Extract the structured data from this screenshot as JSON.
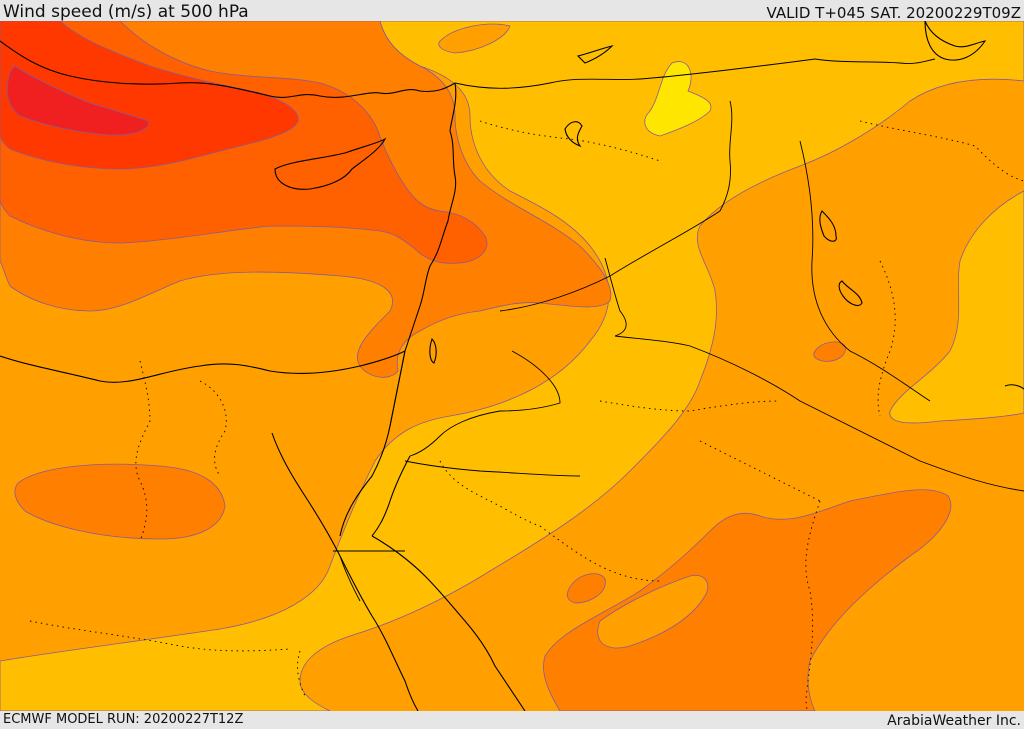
{
  "header": {
    "title": "Wind speed (m/s) at 500 hPa",
    "valid": "VALID T+045 SAT. 20200229T09Z"
  },
  "footer": {
    "model_run": "ECMWF MODEL RUN: 20200227T12Z",
    "credit": "ArabiaWeather Inc."
  },
  "map": {
    "field": "wind speed at 500 hPa",
    "units": "m/s",
    "palette": {
      "band_yellow": "#ffe600",
      "band_light_orange": "#ffbf00",
      "band_orange": "#ffa000",
      "band_dark_orange": "#ff8000",
      "band_red_orange": "#ff6000",
      "band_red": "#ff3800",
      "band_core": "#f02020",
      "contour_line": "#8a5a96",
      "coastline": "#000000",
      "border_dotted": "#000000"
    }
  }
}
